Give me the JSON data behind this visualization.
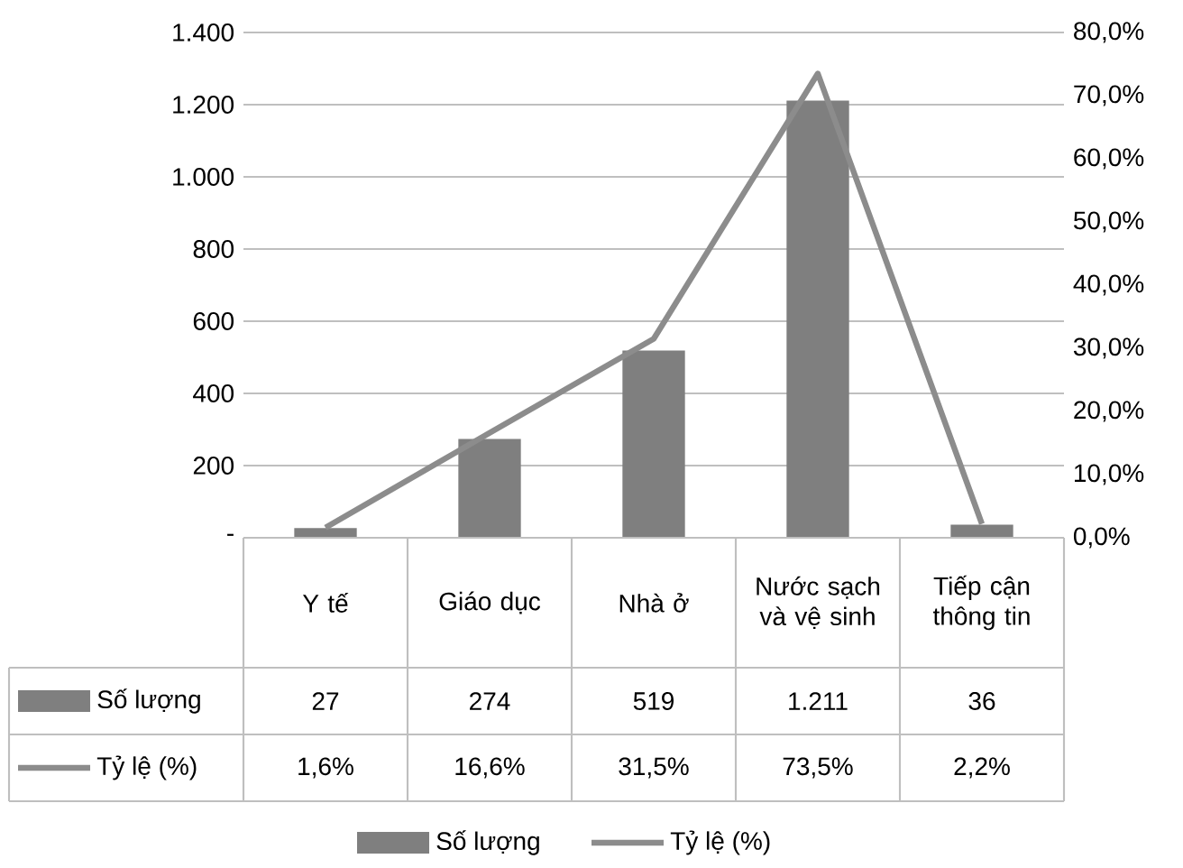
{
  "chart_data": {
    "type": "bar",
    "categories": [
      "Y tế",
      "Giáo dục",
      "Nhà ở",
      "Nước sạch và vệ sinh",
      "Tiếp cận thông tin"
    ],
    "series": [
      {
        "name": "Số lượng",
        "color": "#7f7f7f",
        "values": [
          27,
          274,
          519,
          1211,
          36
        ],
        "value_labels": [
          "27",
          "274",
          "519",
          "1.211",
          "36"
        ]
      },
      {
        "name": "Tỷ lệ (%)",
        "type": "line",
        "axis": "y2",
        "color": "#8c8c8c",
        "values": [
          1.6,
          16.6,
          31.5,
          73.5,
          2.2
        ],
        "value_labels": [
          "1,6%",
          "16,6%",
          "31,5%",
          "73,5%",
          "2,2%"
        ]
      }
    ],
    "ylim": [
      0,
      1400
    ],
    "yticks": [
      {
        "value": 0,
        "label": "-"
      },
      {
        "value": 200,
        "label": "200"
      },
      {
        "value": 400,
        "label": "400"
      },
      {
        "value": 600,
        "label": "600"
      },
      {
        "value": 800,
        "label": "800"
      },
      {
        "value": 1000,
        "label": "1.000"
      },
      {
        "value": 1200,
        "label": "1.200"
      },
      {
        "value": 1400,
        "label": "1.400"
      }
    ],
    "y2lim": [
      0,
      80
    ],
    "y2ticks": [
      {
        "value": 0,
        "label": "0,0%"
      },
      {
        "value": 10,
        "label": "10,0%"
      },
      {
        "value": 20,
        "label": "20,0%"
      },
      {
        "value": 30,
        "label": "30,0%"
      },
      {
        "value": 40,
        "label": "40,0%"
      },
      {
        "value": 50,
        "label": "50,0%"
      },
      {
        "value": 60,
        "label": "60,0%"
      },
      {
        "value": 70,
        "label": "70,0%"
      },
      {
        "value": 80,
        "label": "80,0%"
      }
    ],
    "grid": "y",
    "legend": "bottom",
    "marker": "none",
    "tick_labels": "y"
  }
}
